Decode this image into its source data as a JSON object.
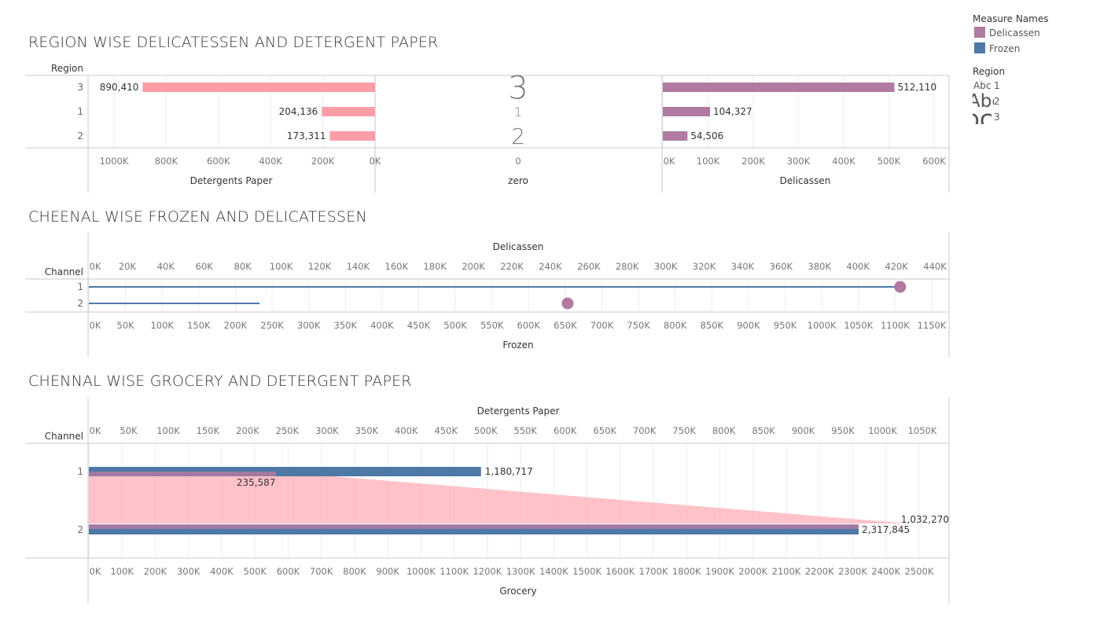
{
  "legend": {
    "measure_title": "Measure Names",
    "measures": [
      {
        "label": "Delicassen",
        "color": "#b07aa1"
      },
      {
        "label": "Frozen",
        "color": "#4e79a7"
      }
    ],
    "region_title": "Region",
    "regions": [
      {
        "glyph": "Abc",
        "label": "1"
      },
      {
        "glyph": "Abc",
        "label": "2"
      },
      {
        "glyph": "Abc",
        "label": "3"
      }
    ]
  },
  "chart_data": [
    {
      "type": "bar",
      "title": "REGION WISE DELICATESSEN AND DETERGENT PAPER",
      "row_header": "Region",
      "categories": [
        "3",
        "1",
        "2"
      ],
      "panels": [
        {
          "name": "Detergents Paper",
          "values": [
            890410,
            204136,
            173311
          ],
          "labels": [
            "890,410",
            "204,136",
            "173,311"
          ],
          "color": "#ff9da7",
          "reversed": true,
          "ticks": [
            "1000K",
            "800K",
            "600K",
            "400K",
            "200K",
            "0K"
          ],
          "xlim": [
            0,
            1000000
          ]
        },
        {
          "name": "zero",
          "text_marks": [
            "3",
            "1",
            "2"
          ],
          "ticks": [
            "0"
          ]
        },
        {
          "name": "Delicassen",
          "values": [
            512110,
            104327,
            54506
          ],
          "labels": [
            "512,110",
            "104,327",
            "54,506"
          ],
          "color": "#b07aa1",
          "ticks": [
            "0K",
            "100K",
            "200K",
            "300K",
            "400K",
            "500K",
            "600K"
          ],
          "xlim": [
            0,
            600000
          ]
        }
      ]
    },
    {
      "type": "scatter",
      "title": "CHEENAL WISE FROZEN AND DELICATESSEN",
      "row_header": "Channel",
      "categories": [
        "1",
        "2"
      ],
      "top_axis": {
        "label": "Delicassen",
        "ticks": [
          "0K",
          "20K",
          "40K",
          "60K",
          "80K",
          "100K",
          "120K",
          "140K",
          "160K",
          "180K",
          "200K",
          "220K",
          "240K",
          "260K",
          "280K",
          "300K",
          "320K",
          "340K",
          "360K",
          "380K",
          "400K",
          "420K",
          "440K"
        ],
        "xlim": [
          0,
          440000
        ]
      },
      "bottom_axis": {
        "label": "Frozen",
        "ticks": [
          "0K",
          "50K",
          "100K",
          "150K",
          "200K",
          "250K",
          "300K",
          "350K",
          "400K",
          "450K",
          "500K",
          "550K",
          "600K",
          "650K",
          "700K",
          "750K",
          "800K",
          "850K",
          "900K",
          "950K",
          "1000K",
          "1050K",
          "1100K",
          "1150K"
        ],
        "xlim": [
          0,
          1150000
        ]
      },
      "series": [
        {
          "name": "Delicassen",
          "color": "#b07aa1",
          "values": [
            421955,
            248988
          ]
        },
        {
          "name": "Frozen",
          "color": "#4e79a7",
          "values": [
            1106000,
            233000
          ]
        }
      ]
    },
    {
      "type": "bar",
      "title": "CHENNAL WISE GROCERY AND DETERGENT PAPER",
      "row_header": "Channel",
      "categories": [
        "1",
        "2"
      ],
      "top_axis": {
        "label": "Detergents Paper",
        "ticks": [
          "0K",
          "50K",
          "100K",
          "150K",
          "200K",
          "250K",
          "300K",
          "350K",
          "400K",
          "450K",
          "500K",
          "550K",
          "600K",
          "650K",
          "700K",
          "750K",
          "800K",
          "850K",
          "900K",
          "950K",
          "1000K",
          "1050K"
        ],
        "xlim": [
          0,
          1050000
        ]
      },
      "bottom_axis": {
        "label": "Grocery",
        "ticks": [
          "0K",
          "100K",
          "200K",
          "300K",
          "400K",
          "500K",
          "600K",
          "700K",
          "800K",
          "900K",
          "1000K",
          "1100K",
          "1200K",
          "1300K",
          "1400K",
          "1500K",
          "1600K",
          "1700K",
          "1800K",
          "1900K",
          "2000K",
          "2100K",
          "2200K",
          "2300K",
          "2400K",
          "2500K"
        ],
        "xlim": [
          0,
          2500000
        ]
      },
      "series": [
        {
          "name": "Detergents Paper",
          "color": "#ff9da7",
          "values": [
            235587,
            1032270
          ],
          "labels": [
            "235,587",
            "1,032,270"
          ]
        },
        {
          "name": "Grocery",
          "color": "#4e79a7",
          "values": [
            1180717,
            2317845
          ],
          "labels": [
            "1,180,717",
            "2,317,845"
          ]
        }
      ]
    }
  ]
}
